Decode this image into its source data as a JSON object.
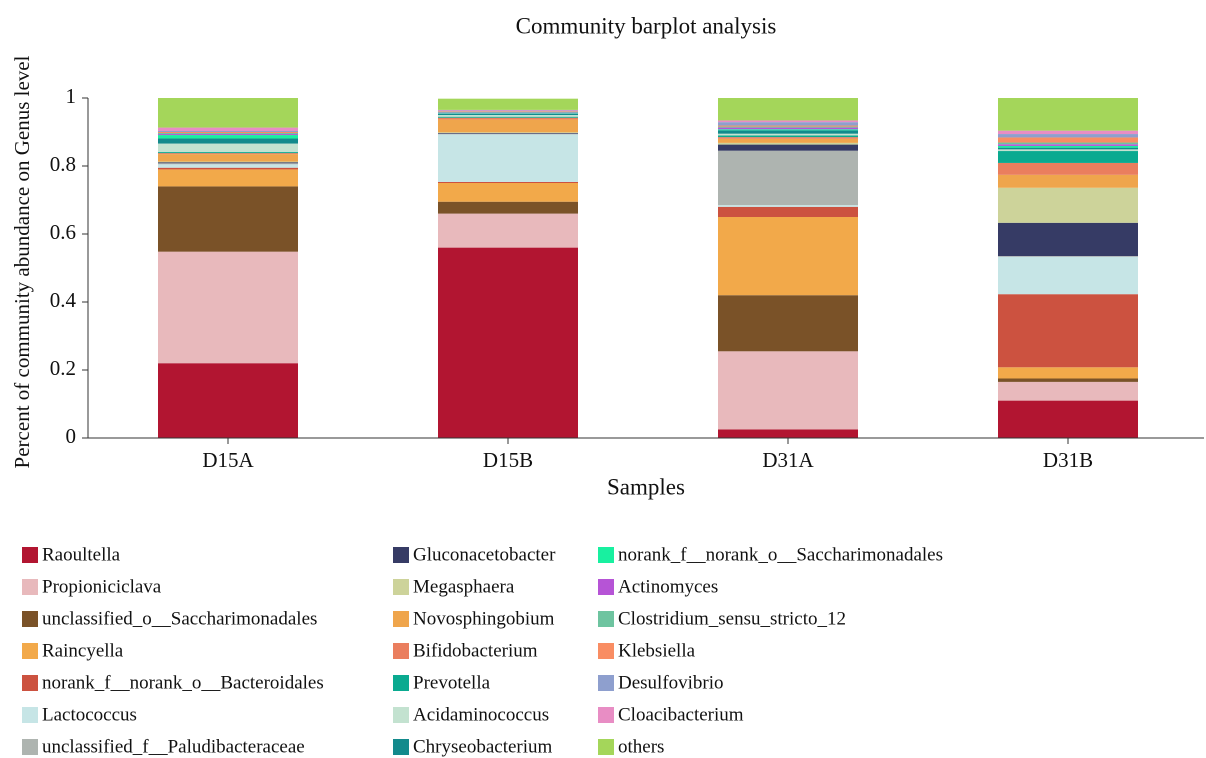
{
  "chart_data": {
    "type": "stacked_bar",
    "title": "Community barplot analysis",
    "x_label": "Samples",
    "y_label": "Percent of community abundance on Genus level",
    "categories": [
      "D15A",
      "D15B",
      "D31A",
      "D31B"
    ],
    "ylim": [
      0,
      1
    ],
    "yticks": [
      0,
      0.2,
      0.4,
      0.6,
      0.8,
      1
    ],
    "series": [
      {
        "name": "Raoultella",
        "color": "#b21531",
        "values": [
          0.22,
          0.56,
          0.025,
          0.11
        ]
      },
      {
        "name": "Propioniciclava",
        "color": "#e8b9bc",
        "values": [
          0.328,
          0.1,
          0.23,
          0.055
        ]
      },
      {
        "name": "unclassified_o__Saccharimonadales",
        "color": "#7a5228",
        "values": [
          0.192,
          0.035,
          0.165,
          0.01
        ]
      },
      {
        "name": "Raincyella",
        "color": "#f2a94a",
        "values": [
          0.05,
          0.055,
          0.23,
          0.033
        ]
      },
      {
        "name": "norank_f__norank_o__Bacteroidales",
        "color": "#cc5240",
        "values": [
          0.005,
          0.003,
          0.03,
          0.215
        ]
      },
      {
        "name": "Lactococcus",
        "color": "#c6e5e6",
        "values": [
          0.01,
          0.14,
          0.005,
          0.11
        ]
      },
      {
        "name": "unclassified_f__Paludibacteraceae",
        "color": "#aeb4b0",
        "values": [
          0.003,
          0.002,
          0.16,
          0.002
        ]
      },
      {
        "name": "Gluconacetobacter",
        "color": "#363b65",
        "values": [
          0.003,
          0.002,
          0.018,
          0.098
        ]
      },
      {
        "name": "Megasphaera",
        "color": "#cdd39a",
        "values": [
          0.002,
          0.002,
          0.005,
          0.103
        ]
      },
      {
        "name": "Novosphingobium",
        "color": "#efa54c",
        "values": [
          0.022,
          0.038,
          0.012,
          0.038
        ]
      },
      {
        "name": "Bifidobacterium",
        "color": "#ea7e5e",
        "values": [
          0.003,
          0.005,
          0.005,
          0.035
        ]
      },
      {
        "name": "Prevotella",
        "color": "#0aaa90",
        "values": [
          0.003,
          0.003,
          0.005,
          0.035
        ]
      },
      {
        "name": "Acidaminococcus",
        "color": "#c3e2d0",
        "values": [
          0.025,
          0.005,
          0.005,
          0.005
        ]
      },
      {
        "name": "Chryseobacterium",
        "color": "#138a8c",
        "values": [
          0.015,
          0.003,
          0.01,
          0.005
        ]
      },
      {
        "name": "norank_f__norank_o__Saccharimonadales",
        "color": "#18f0a0",
        "values": [
          0.01,
          0.002,
          0.003,
          0.005
        ]
      },
      {
        "name": "Actinomyces",
        "color": "#b654d6",
        "values": [
          0.003,
          0.002,
          0.005,
          0.005
        ]
      },
      {
        "name": "Clostridium_sensu_stricto_12",
        "color": "#6ec4a0",
        "values": [
          0.003,
          0.002,
          0.003,
          0.005
        ]
      },
      {
        "name": "Klebsiella",
        "color": "#f98d63",
        "values": [
          0.003,
          0.002,
          0.003,
          0.015
        ]
      },
      {
        "name": "Desulfovibrio",
        "color": "#8e9fce",
        "values": [
          0.003,
          0.002,
          0.01,
          0.01
        ]
      },
      {
        "name": "Cloacibacterium",
        "color": "#e88dc4",
        "values": [
          0.01,
          0.002,
          0.005,
          0.01
        ]
      },
      {
        "name": "others",
        "color": "#a4d65a",
        "values": [
          0.087,
          0.033,
          0.066,
          0.096
        ]
      }
    ]
  }
}
